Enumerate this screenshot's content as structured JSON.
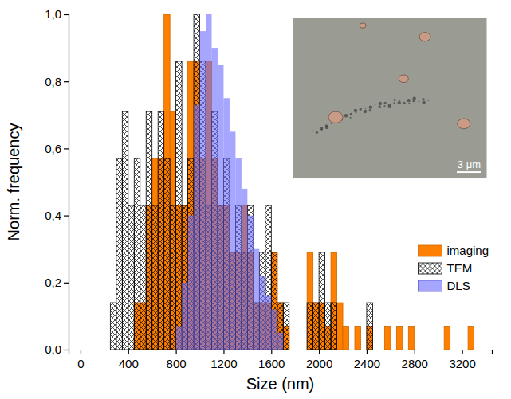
{
  "chart_data": {
    "type": "histogram",
    "x_label": "Size (nm)",
    "y_label": "Norm. frequency",
    "xlim": [
      -100,
      3450
    ],
    "xticks": [
      0,
      400,
      800,
      1200,
      1600,
      2000,
      2400,
      2800,
      3200
    ],
    "ylim": [
      0,
      1
    ],
    "yticks": [
      {
        "value": 0,
        "label": "0,0"
      },
      {
        "value": 0.2,
        "label": "0,2"
      },
      {
        "value": 0.4,
        "label": "0,4"
      },
      {
        "value": 0.6,
        "label": "0,6"
      },
      {
        "value": 0.8,
        "label": "0,8"
      },
      {
        "value": 1,
        "label": "1,0"
      }
    ],
    "grid": false,
    "legend": "bottom-right",
    "annotations": [
      {
        "text": "3 μm"
      }
    ],
    "series": [
      {
        "name": "imaging",
        "color": "#ff8000",
        "marker": "solid",
        "bins": [
          400,
          450,
          500,
          550,
          600,
          650,
          700,
          750,
          800,
          850,
          900,
          950,
          1000,
          1050,
          1100,
          1150,
          1200,
          1250,
          1300,
          1350,
          1400,
          1450,
          1500,
          1550,
          1600,
          1650,
          1700,
          1750,
          1800,
          1850,
          1900,
          1950,
          2000,
          2050,
          2100,
          2150,
          2200,
          2250,
          2300,
          2350,
          2400,
          2450,
          2500,
          2550,
          2600,
          2650,
          2700,
          2750,
          2800,
          2850,
          2900,
          2950,
          3000,
          3050,
          3100,
          3150,
          3200,
          3250,
          3300
        ],
        "values": [
          0,
          0.14,
          0.14,
          0.43,
          0.57,
          0.57,
          1.0,
          0.71,
          0.43,
          0.43,
          0.86,
          0.86,
          0.57,
          0.86,
          0.57,
          0.43,
          0.43,
          0.29,
          0.29,
          0.43,
          0.29,
          0.14,
          0.14,
          0.14,
          0.29,
          0.14,
          0.07,
          0,
          0,
          0,
          0.29,
          0.14,
          0.14,
          0.07,
          0.29,
          0.14,
          0.07,
          0,
          0.07,
          0,
          0.07,
          0,
          0,
          0.07,
          0,
          0.07,
          0,
          0.07,
          0,
          0,
          0,
          0,
          0,
          0.07,
          0,
          0,
          0,
          0.07
        ]
      },
      {
        "name": "TEM",
        "color": "#000000",
        "marker": "hatch",
        "bins": [
          250,
          300,
          350,
          400,
          450,
          500,
          550,
          600,
          650,
          700,
          750,
          800,
          850,
          900,
          950,
          1000,
          1050,
          1100,
          1150,
          1200,
          1250,
          1300,
          1350,
          1400,
          1450,
          1500,
          1550,
          1600,
          1650,
          1700,
          1750,
          1800,
          1850,
          1900,
          1950,
          2000,
          2050,
          2100,
          2150,
          2200,
          2250,
          2300,
          2350,
          2400,
          2450
        ],
        "values": [
          0.14,
          0.57,
          0.71,
          0.43,
          0.57,
          0.43,
          0.71,
          0.43,
          0.71,
          0.57,
          0.43,
          0.86,
          0.43,
          0.57,
          1.0,
          0.86,
          0.43,
          0.71,
          0.43,
          0.57,
          0.29,
          0.43,
          0.29,
          0.43,
          0.14,
          0.29,
          0.43,
          0.29,
          0.14,
          0.14,
          0,
          0,
          0,
          0.14,
          0.14,
          0.29,
          0.14,
          0.14,
          0,
          0,
          0,
          0,
          0,
          0.14
        ]
      },
      {
        "name": "DLS",
        "color": "#6a6aff",
        "marker": "solid",
        "bins": [
          800,
          850,
          900,
          950,
          1000,
          1050,
          1100,
          1150,
          1200,
          1250,
          1300,
          1350,
          1400,
          1450,
          1500,
          1550,
          1600,
          1650,
          1700
        ],
        "values": [
          0.07,
          0.2,
          0.4,
          0.73,
          0.95,
          1.0,
          0.9,
          0.85,
          0.75,
          0.65,
          0.57,
          0.48,
          0.4,
          0.3,
          0.22,
          0.16,
          0.12,
          0.05
        ]
      }
    ]
  }
}
